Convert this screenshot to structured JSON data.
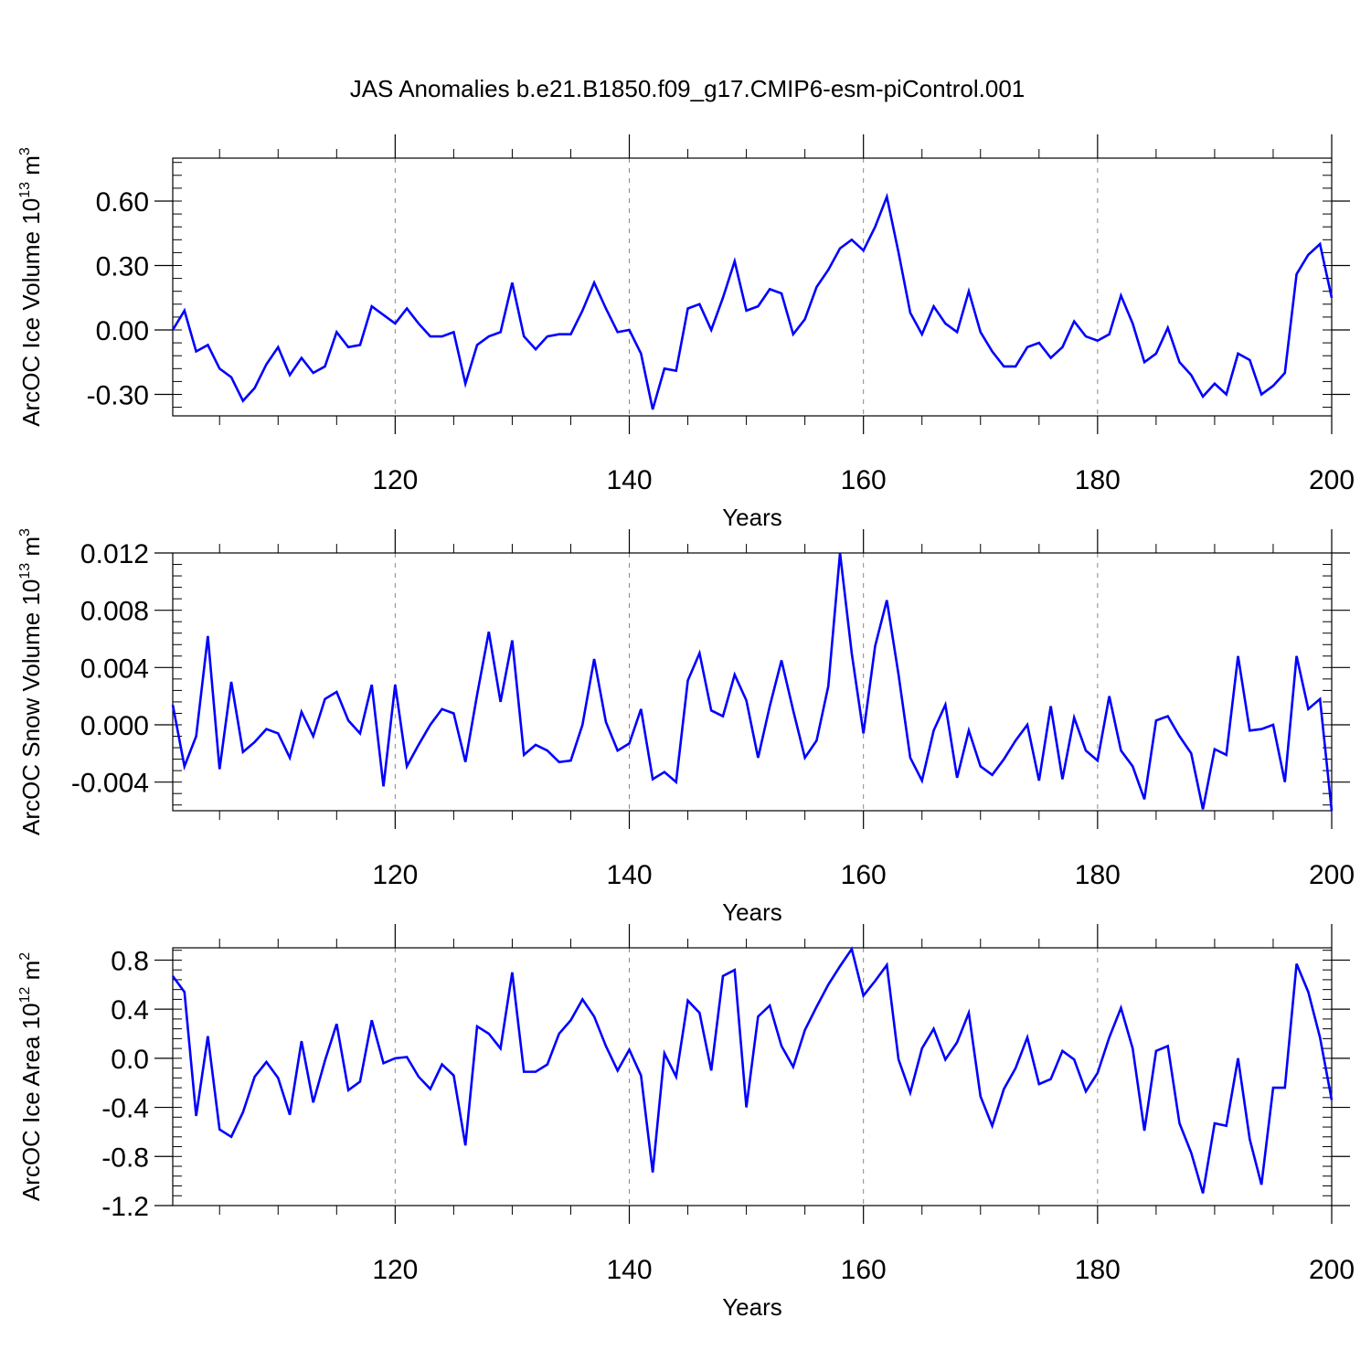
{
  "figure": {
    "title": "JAS Anomalies b.e21.B1850.f09_g17.CMIP6-esm-piControl.001",
    "line_color": "#0000ff"
  },
  "chart_data": [
    {
      "type": "line",
      "ylabel": "ArcOC Ice Volume 10",
      "ylabel_exp": "13",
      "ylabel_unit": " m",
      "ylabel_unit_exp": "3",
      "xlabel": "Years",
      "xlim": [
        101,
        200
      ],
      "ylim": [
        -0.4,
        0.8
      ],
      "yticks": [
        -0.3,
        0.0,
        0.3,
        0.6
      ],
      "ytick_labels": [
        "-0.30",
        "0.00",
        "0.30",
        "0.60"
      ],
      "yminor_step": 0.06,
      "xticks": [
        120,
        140,
        160,
        180,
        200
      ],
      "xtick_labels": [
        "120",
        "140",
        "160",
        "180",
        "200"
      ],
      "x_start": 101,
      "values": [
        0.0,
        0.09,
        -0.1,
        -0.07,
        -0.18,
        -0.22,
        -0.33,
        -0.27,
        -0.16,
        -0.08,
        -0.21,
        -0.13,
        -0.2,
        -0.17,
        -0.01,
        -0.08,
        -0.07,
        0.11,
        0.07,
        0.03,
        0.1,
        0.03,
        -0.03,
        -0.03,
        -0.01,
        -0.25,
        -0.07,
        -0.03,
        -0.01,
        0.22,
        -0.03,
        -0.09,
        -0.03,
        -0.02,
        -0.02,
        0.09,
        0.22,
        0.1,
        -0.01,
        0.0,
        -0.11,
        -0.37,
        -0.18,
        -0.19,
        0.1,
        0.12,
        0.0,
        0.15,
        0.32,
        0.09,
        0.11,
        0.19,
        0.17,
        -0.02,
        0.05,
        0.2,
        0.28,
        0.38,
        0.42,
        0.37,
        0.48,
        0.62,
        0.36,
        0.08,
        -0.02,
        0.11,
        0.03,
        -0.01,
        0.18,
        -0.01,
        -0.1,
        -0.17,
        -0.17,
        -0.08,
        -0.06,
        -0.13,
        -0.08,
        0.04,
        -0.03,
        -0.05,
        -0.02,
        0.16,
        0.03,
        -0.15,
        -0.11,
        0.01,
        -0.15,
        -0.21,
        -0.31,
        -0.25,
        -0.3,
        -0.11,
        -0.14,
        -0.3,
        -0.26,
        -0.2,
        0.26,
        0.35,
        0.4,
        0.15
      ]
    },
    {
      "type": "line",
      "ylabel": "ArcOC Snow Volume 10",
      "ylabel_exp": "13",
      "ylabel_unit": " m",
      "ylabel_unit_exp": "3",
      "xlabel": "Years",
      "xlim": [
        101,
        200
      ],
      "ylim": [
        -0.006,
        0.012
      ],
      "yticks": [
        -0.004,
        0.0,
        0.004,
        0.008,
        0.012
      ],
      "ytick_labels": [
        "-0.004",
        "0.000",
        "0.004",
        "0.008",
        "0.012"
      ],
      "yminor_step": 0.0008,
      "xticks": [
        120,
        140,
        160,
        180,
        200
      ],
      "xtick_labels": [
        "120",
        "140",
        "160",
        "180",
        "200"
      ],
      "x_start": 101,
      "values": [
        0.0014,
        -0.0029,
        -0.0008,
        0.0062,
        -0.0031,
        0.003,
        -0.0019,
        -0.0012,
        -0.0003,
        -0.0006,
        -0.0023,
        0.0009,
        -0.0008,
        0.0018,
        0.0023,
        0.0003,
        -0.0006,
        0.0028,
        -0.0043,
        0.0028,
        -0.0029,
        -0.0014,
        0.0,
        0.0011,
        0.0008,
        -0.0026,
        0.0021,
        0.0065,
        0.0016,
        0.0059,
        -0.0021,
        -0.0014,
        -0.0018,
        -0.0026,
        -0.0025,
        0.0,
        0.0046,
        0.0002,
        -0.0018,
        -0.0013,
        0.0011,
        -0.0038,
        -0.0033,
        -0.004,
        0.0031,
        0.005,
        0.001,
        0.0006,
        0.0035,
        0.0017,
        -0.0023,
        0.0013,
        0.0045,
        0.001,
        -0.0023,
        -0.0011,
        0.0027,
        0.012,
        0.005,
        -0.0006,
        0.0055,
        0.0087,
        0.0035,
        -0.0023,
        -0.0039,
        -0.0004,
        0.0014,
        -0.0037,
        -0.0004,
        -0.0029,
        -0.0035,
        -0.0024,
        -0.0011,
        0.0,
        -0.0039,
        0.0013,
        -0.0038,
        0.0005,
        -0.0018,
        -0.0025,
        0.002,
        -0.0018,
        -0.0029,
        -0.0052,
        0.0003,
        0.0006,
        -0.0008,
        -0.002,
        -0.0059,
        -0.0017,
        -0.0021,
        0.0048,
        -0.0004,
        -0.0003,
        0.0,
        -0.004,
        0.0048,
        0.0011,
        0.0018,
        -0.006
      ]
    },
    {
      "type": "line",
      "ylabel": "ArcOC Ice Area 10",
      "ylabel_exp": "12",
      "ylabel_unit": " m",
      "ylabel_unit_exp": "2",
      "xlabel": "Years",
      "xlim": [
        101,
        200
      ],
      "ylim": [
        -1.2,
        0.9
      ],
      "yticks": [
        -1.2,
        -0.8,
        -0.4,
        0.0,
        0.4,
        0.8
      ],
      "ytick_labels": [
        "-1.2",
        "-0.8",
        "-0.4",
        "0.0",
        "0.4",
        "0.8"
      ],
      "yminor_step": 0.08,
      "xticks": [
        120,
        140,
        160,
        180,
        200
      ],
      "xtick_labels": [
        "120",
        "140",
        "160",
        "180",
        "200"
      ],
      "x_start": 101,
      "values": [
        0.67,
        0.54,
        -0.47,
        0.18,
        -0.58,
        -0.64,
        -0.44,
        -0.15,
        -0.03,
        -0.16,
        -0.46,
        0.14,
        -0.36,
        -0.02,
        0.28,
        -0.26,
        -0.19,
        0.31,
        -0.04,
        0.0,
        0.01,
        -0.15,
        -0.25,
        -0.05,
        -0.14,
        -0.71,
        0.26,
        0.2,
        0.08,
        0.7,
        -0.11,
        -0.11,
        -0.05,
        0.2,
        0.31,
        0.48,
        0.34,
        0.1,
        -0.1,
        0.07,
        -0.14,
        -0.93,
        0.04,
        -0.15,
        0.47,
        0.37,
        -0.1,
        0.67,
        0.72,
        -0.4,
        0.34,
        0.43,
        0.1,
        -0.07,
        0.23,
        0.42,
        0.6,
        0.75,
        0.89,
        0.51,
        0.63,
        0.76,
        -0.01,
        -0.28,
        0.08,
        0.24,
        -0.01,
        0.13,
        0.37,
        -0.31,
        -0.55,
        -0.25,
        -0.08,
        0.17,
        -0.21,
        -0.17,
        0.06,
        -0.01,
        -0.27,
        -0.12,
        0.17,
        0.41,
        0.08,
        -0.59,
        0.06,
        0.1,
        -0.53,
        -0.77,
        -1.1,
        -0.53,
        -0.55,
        0.0,
        -0.66,
        -1.03,
        -0.24,
        -0.24,
        0.77,
        0.54,
        0.17,
        -0.34
      ]
    }
  ]
}
